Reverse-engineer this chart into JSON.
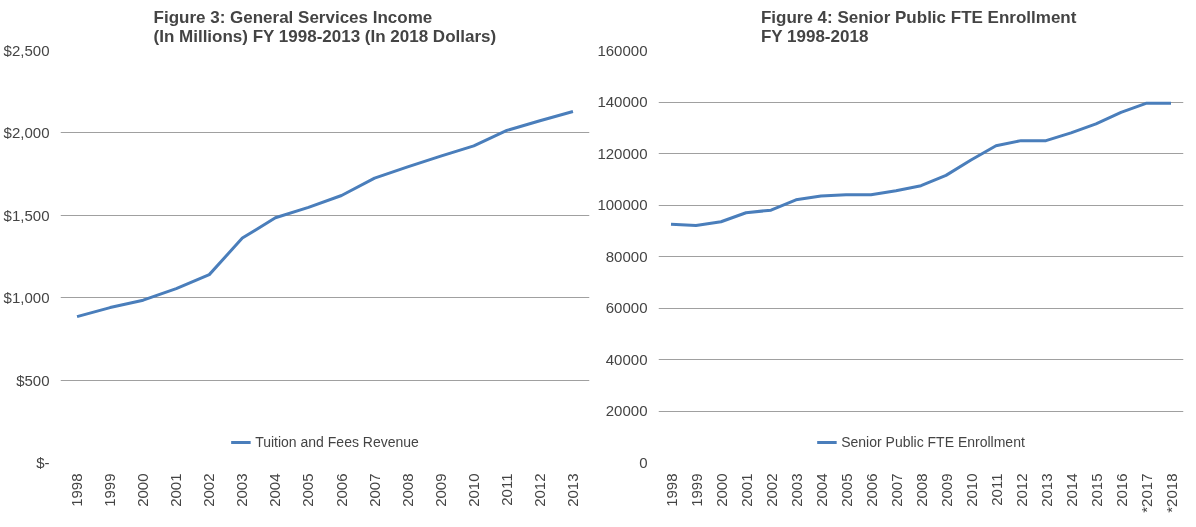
{
  "chart_data": [
    {
      "type": "line",
      "title": "Figure 3:  General Services Income\n(In Millions) FY 1998-2013 (In 2018 Dollars)",
      "categories": [
        "1998",
        "1999",
        "2000",
        "2001",
        "2002",
        "2003",
        "2004",
        "2005",
        "2006",
        "2007",
        "2008",
        "2009",
        "2010",
        "2011",
        "2012",
        "2013"
      ],
      "series": [
        {
          "name": "Tuition and Fees Revenue",
          "color": "#4a7ebb",
          "values": [
            885,
            940,
            985,
            1055,
            1140,
            1362,
            1485,
            1548,
            1620,
            1726,
            1794,
            1859,
            1921,
            2015,
            2074,
            2130
          ]
        }
      ],
      "ylim": [
        0,
        2500
      ],
      "yticks": [
        {
          "value": 0,
          "label": "$-"
        },
        {
          "value": 500,
          "label": "$500"
        },
        {
          "value": 1000,
          "label": "$1,000"
        },
        {
          "value": 1500,
          "label": "$1,500"
        },
        {
          "value": 2000,
          "label": "$2,000"
        },
        {
          "value": 2500,
          "label": "$2,500"
        }
      ],
      "grid": "y",
      "legend": "bottom",
      "marker": "none",
      "line_style": "solid"
    },
    {
      "type": "line",
      "title": "Figure 4:  Senior Public FTE Enrollment\nFY 1998-2018",
      "categories": [
        "1998",
        "1999",
        "2000",
        "2001",
        "2002",
        "2003",
        "2004",
        "2005",
        "2006",
        "2007",
        "2008",
        "2009",
        "2010",
        "2011",
        "2012",
        "2013",
        "2014",
        "2015",
        "2016",
        "*2017",
        "*2018"
      ],
      "series": [
        {
          "name": "Senior Public FTE Enrollment",
          "color": "#4a7ebb",
          "values": [
            92500,
            92000,
            93500,
            97000,
            98000,
            102000,
            103500,
            104000,
            104000,
            105500,
            107500,
            111500,
            117500,
            123000,
            125000,
            125000,
            128000,
            131500,
            136000,
            139500,
            139500
          ]
        }
      ],
      "ylim": [
        0,
        160000
      ],
      "yticks": [
        0,
        20000,
        40000,
        60000,
        80000,
        100000,
        120000,
        140000,
        160000
      ],
      "grid": "y",
      "legend": "bottom",
      "marker": "none",
      "line_style": "solid"
    }
  ]
}
